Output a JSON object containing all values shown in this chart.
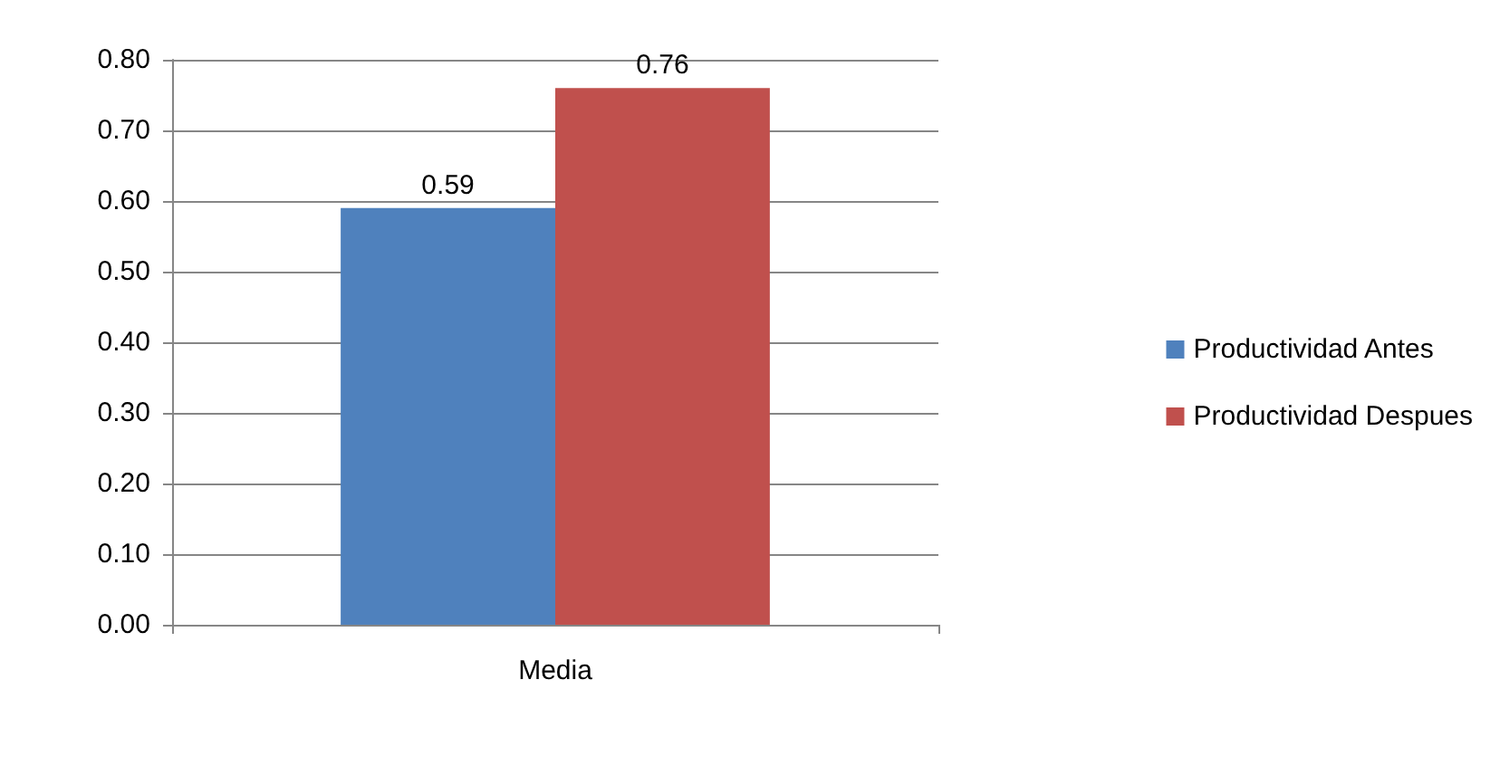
{
  "chart_data": {
    "type": "bar",
    "categories": [
      "Media"
    ],
    "series": [
      {
        "name": "Productividad Antes",
        "color": "#4f81bd",
        "values": [
          0.59
        ]
      },
      {
        "name": "Productividad Despues",
        "color": "#c0504d",
        "values": [
          0.76
        ]
      }
    ],
    "ylim": [
      0,
      0.8
    ],
    "yticks": [
      {
        "value": 0,
        "label": "0.00"
      },
      {
        "value": 0.1,
        "label": "0.10"
      },
      {
        "value": 0.2,
        "label": "0.20"
      },
      {
        "value": 0.3,
        "label": "0.30"
      },
      {
        "value": 0.4,
        "label": "0.40"
      },
      {
        "value": 0.5,
        "label": "0.50"
      },
      {
        "value": 0.6,
        "label": "0.60"
      },
      {
        "value": 0.7,
        "label": "0.70"
      },
      {
        "value": 0.8,
        "label": "0.80"
      }
    ],
    "grid": "y",
    "legend": "right",
    "data_labels": true
  }
}
